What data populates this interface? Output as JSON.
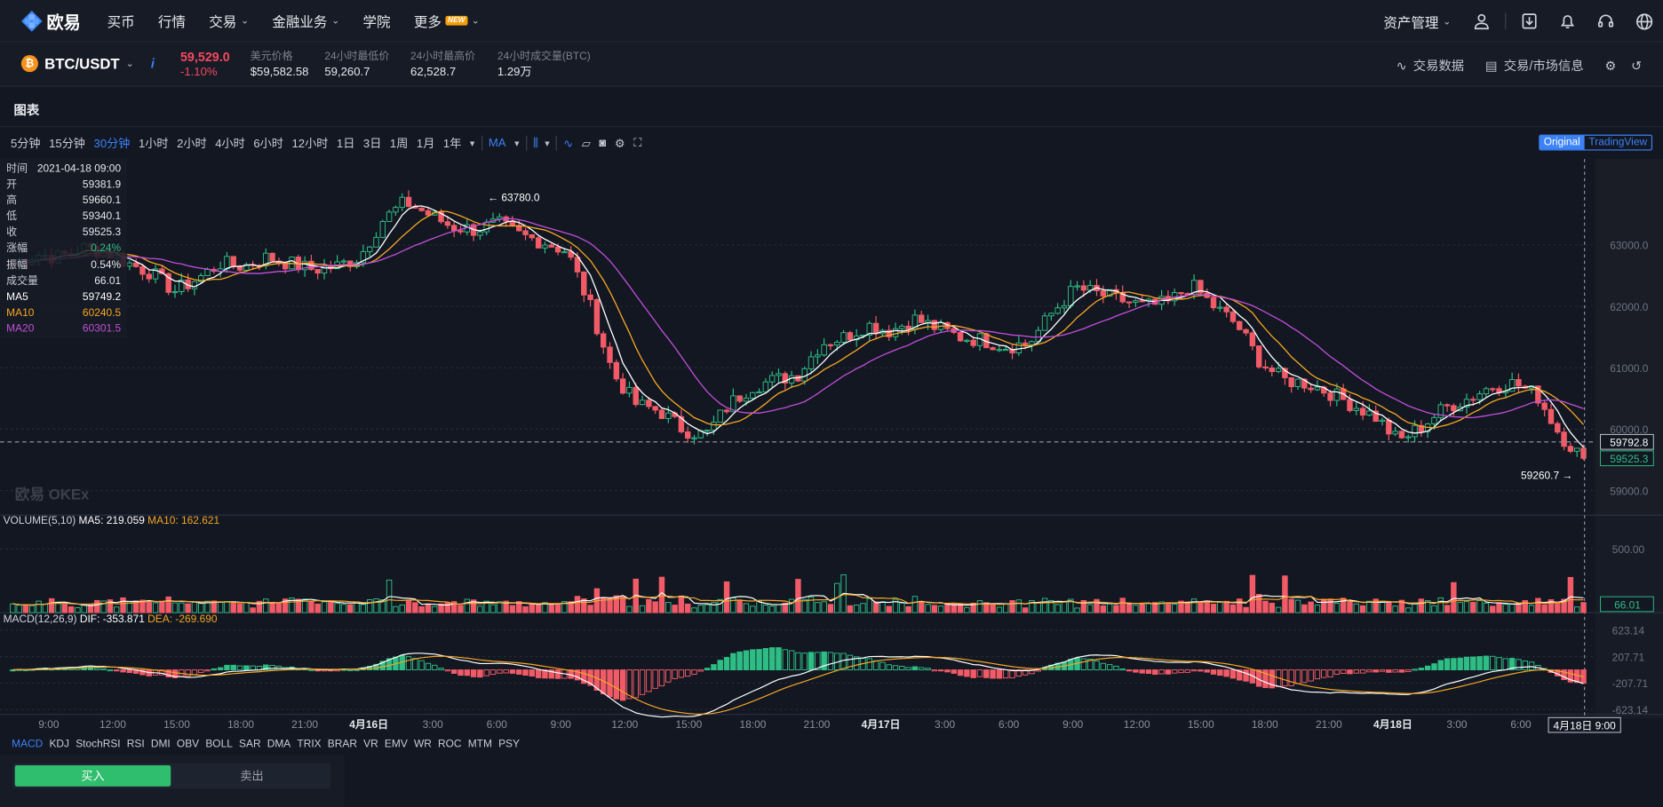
{
  "nav": {
    "logo": "欧易",
    "items": [
      "买币",
      "行情",
      "交易",
      "金融业务",
      "学院",
      "更多"
    ],
    "new_badge": "NEW",
    "asset": "资产管理"
  },
  "ticker": {
    "pair": "BTC/USDT",
    "price": "59,529.0",
    "change": "-1.10%",
    "usd_label": "美元价格",
    "usd_value": "$59,582.58",
    "low_label": "24小时最低价",
    "low_value": "59,260.7",
    "high_label": "24小时最高价",
    "high_value": "62,528.7",
    "vol_label": "24小时成交量(BTC)",
    "vol_value": "1.29万",
    "trade_data": "交易数据",
    "market_info": "交易/市场信息"
  },
  "chart_title": "图表",
  "toolbar": {
    "timeframes": [
      "5分钟",
      "15分钟",
      "30分钟",
      "1小时",
      "2小时",
      "4小时",
      "6小时",
      "12小时",
      "1日",
      "3日",
      "1周",
      "1月",
      "1年"
    ],
    "active": "30分钟",
    "ma": "MA",
    "original": "Original",
    "tradingview": "TradingView"
  },
  "ohlc": {
    "rows": [
      [
        "时间",
        "2021-04-18 09:00"
      ],
      [
        "开",
        "59381.9"
      ],
      [
        "高",
        "59660.1"
      ],
      [
        "低",
        "59340.1"
      ],
      [
        "收",
        "59525.3"
      ],
      [
        "涨幅",
        "0.24%"
      ],
      [
        "振幅",
        "0.54%"
      ],
      [
        "成交量",
        "66.01"
      ],
      [
        "MA5",
        "59749.2"
      ],
      [
        "MA10",
        "60240.5"
      ],
      [
        "MA20",
        "60301.5"
      ]
    ]
  },
  "watermark": "欧易 OKEx",
  "annotations": {
    "high": "← 63780.0",
    "low": "59260.7 →"
  },
  "volume_legend": {
    "name": "VOLUME(5,10)",
    "ma5": "MA5: 219.059",
    "ma10": "MA10: 162.621"
  },
  "macd_legend": {
    "name": "MACD(12,26,9)",
    "dif": "DIF: -353.871",
    "dea": "DEA: -269.690"
  },
  "indicators": [
    "MACD",
    "KDJ",
    "StochRSI",
    "RSI",
    "DMI",
    "OBV",
    "BOLL",
    "SAR",
    "DMA",
    "TRIX",
    "BRAR",
    "VR",
    "EMV",
    "WR",
    "ROC",
    "MTM",
    "PSY"
  ],
  "trade": {
    "buy": "买入",
    "sell": "卖出"
  },
  "colors": {
    "up": "#2ebd85",
    "down": "#f05b67",
    "ma5": "#ffffff",
    "ma10": "#f5a623",
    "ma20": "#c14fd8",
    "accent": "#3b82f6"
  },
  "chart_data": {
    "type": "candlestick",
    "price_axis": [
      "63000.0",
      "62000.0",
      "61000.0",
      "60000.0",
      "59000.0"
    ],
    "ylim": [
      58600,
      64400
    ],
    "current_price": "59792.8",
    "last_close": "59525.3",
    "high_mark": 63780.0,
    "low_mark": 59260.7,
    "volume_axis": [
      "500.00"
    ],
    "last_volume": "66.01",
    "macd_axis": [
      "623.14",
      "207.71",
      "-207.71",
      "-623.14"
    ],
    "time_labels": [
      "9:00",
      "12:00",
      "15:00",
      "18:00",
      "21:00",
      "4月16日",
      "3:00",
      "6:00",
      "9:00",
      "12:00",
      "15:00",
      "18:00",
      "21:00",
      "4月17日",
      "3:00",
      "6:00",
      "9:00",
      "12:00",
      "15:00",
      "18:00",
      "21:00",
      "4月18日",
      "3:00",
      "6:00"
    ],
    "cursor_time": "4月18日 9:00",
    "close_path": [
      62700,
      62850,
      62800,
      62950,
      62900,
      62700,
      62550,
      62250,
      62450,
      62700,
      62650,
      62800,
      62700,
      62600,
      62650,
      62800,
      63400,
      63700,
      63500,
      63300,
      63250,
      63350,
      63150,
      63050,
      62900,
      62000,
      60900,
      60400,
      60300,
      60000,
      59900,
      60400,
      60700,
      60800,
      60900,
      61400,
      61500,
      61700,
      61600,
      61800,
      61650,
      61500,
      61450,
      61350,
      61400,
      61900,
      62300,
      62200,
      62100,
      62000,
      62050,
      62350,
      62000,
      61700,
      61100,
      60800,
      60750,
      60600,
      60400,
      60200,
      59800,
      60050,
      60350,
      60500,
      60700,
      60750,
      60550,
      59900,
      59525.3
    ]
  },
  "status_text": "",
  "footer": ""
}
